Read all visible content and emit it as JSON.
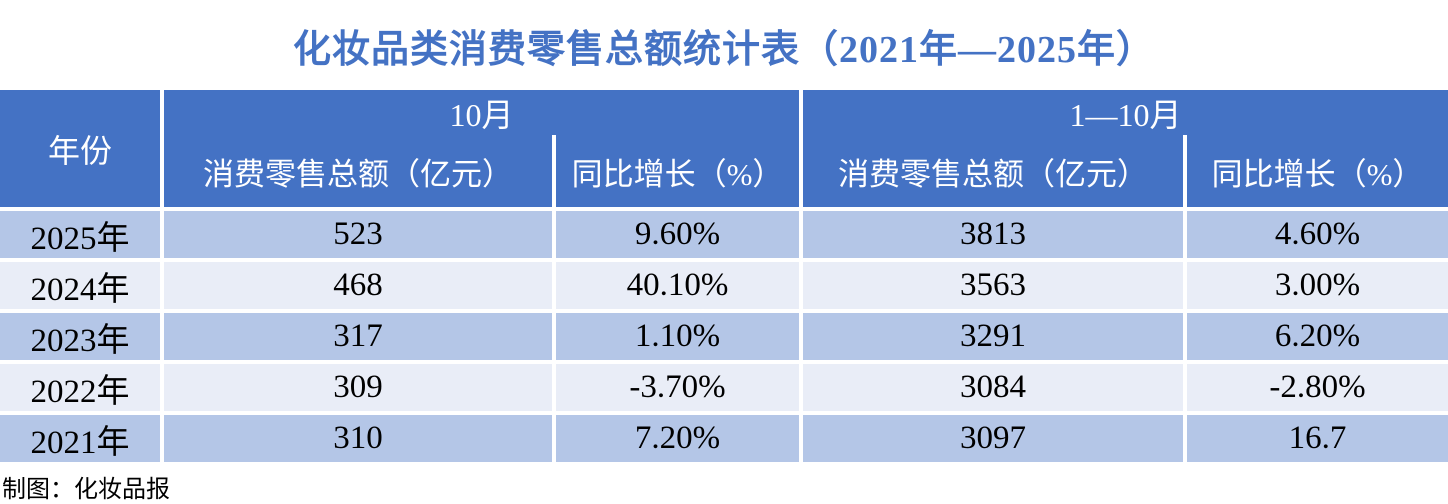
{
  "title": "化妆品类消费零售总额统计表（2021年—2025年）",
  "table": {
    "year_header": "年份",
    "groups": [
      {
        "label": "10月",
        "columns": [
          "消费零售总额（亿元）",
          "同比增长（%）"
        ]
      },
      {
        "label": "1—10月",
        "columns": [
          "消费零售总额（亿元）",
          "同比增长（%）"
        ]
      }
    ],
    "rows": [
      {
        "year": "2025年",
        "oct_total": "523",
        "oct_yoy": "9.60%",
        "ytd_total": "3813",
        "ytd_yoy": "4.60%"
      },
      {
        "year": "2024年",
        "oct_total": "468",
        "oct_yoy": "40.10%",
        "ytd_total": "3563",
        "ytd_yoy": "3.00%"
      },
      {
        "year": "2023年",
        "oct_total": "317",
        "oct_yoy": "1.10%",
        "ytd_total": "3291",
        "ytd_yoy": "6.20%"
      },
      {
        "year": "2022年",
        "oct_total": "309",
        "oct_yoy": "-3.70%",
        "ytd_total": "3084",
        "ytd_yoy": "-2.80%"
      },
      {
        "year": "2021年",
        "oct_total": "310",
        "oct_yoy": "7.20%",
        "ytd_total": "3097",
        "ytd_yoy": "16.7"
      }
    ]
  },
  "footer": {
    "credit": "制图：化妆品报"
  },
  "colors": {
    "title_blue": "#4472C4",
    "header_blue": "#4472C4",
    "header_text": "#FFFFFF",
    "row_alt_dark": "#B4C6E7",
    "row_alt_light": "#E9EDF7",
    "body_text": "#000000",
    "background": "#FFFFFF"
  },
  "chart_data": {
    "type": "table",
    "title": "化妆品类消费零售总额统计表（2021年—2025年）",
    "columns": [
      "年份",
      "10月 消费零售总额（亿元）",
      "10月 同比增长（%）",
      "1—10月 消费零售总额（亿元）",
      "1—10月 同比增长（%）"
    ],
    "rows": [
      [
        "2025年",
        523,
        "9.60%",
        3813,
        "4.60%"
      ],
      [
        "2024年",
        468,
        "40.10%",
        3563,
        "3.00%"
      ],
      [
        "2023年",
        317,
        "1.10%",
        3291,
        "6.20%"
      ],
      [
        "2022年",
        309,
        "-3.70%",
        3084,
        "-2.80%"
      ],
      [
        "2021年",
        310,
        "7.20%",
        3097,
        "16.7"
      ]
    ],
    "source_credit": "制图：化妆品报",
    "legend_position": "none",
    "grid": "cell-gaps-white"
  }
}
